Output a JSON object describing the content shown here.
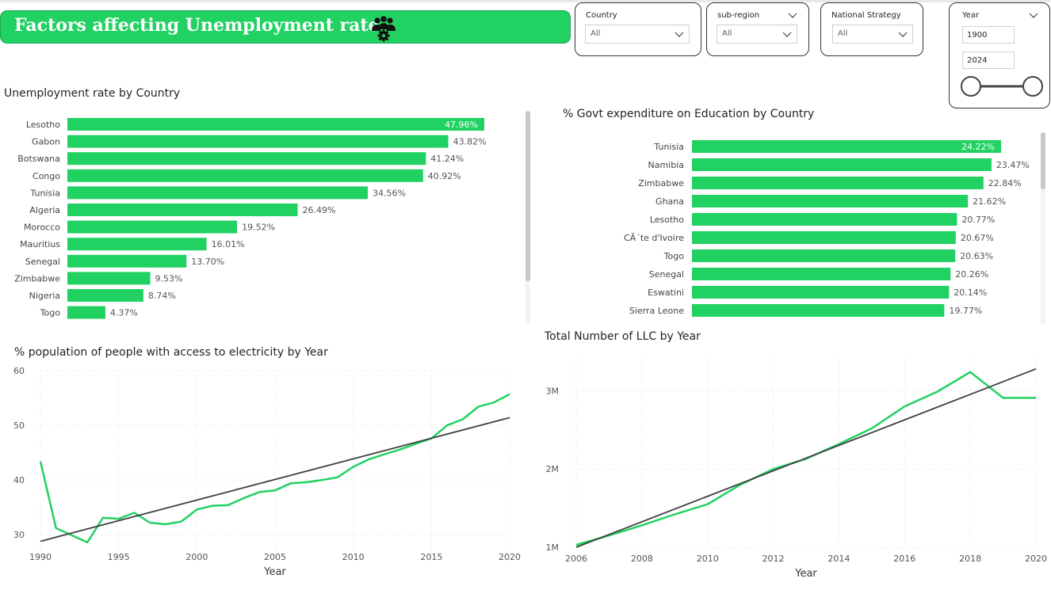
{
  "dashboard": {
    "title": "Factors affecting Unemployment rate",
    "title_icon": "team-gear-icon",
    "accent": "#21d162",
    "trend_color": "#404040"
  },
  "filters": {
    "country": {
      "label": "Country",
      "value": "All"
    },
    "sub_region": {
      "label": "sub-region",
      "value": "All"
    },
    "national_strategy": {
      "label": "National Strategy",
      "value": "All"
    },
    "year": {
      "label": "Year",
      "start": "1900",
      "end": "2024"
    }
  },
  "chart_data": [
    {
      "id": "unemployment",
      "type": "bar",
      "orientation": "horizontal",
      "title": "Unemployment rate by Country",
      "categories": [
        "Lesotho",
        "Gabon",
        "Botswana",
        "Congo",
        "Tunisia",
        "Algeria",
        "Morocco",
        "Mauritius",
        "Senegal",
        "Zimbabwe",
        "Nigeria",
        "Togo"
      ],
      "values": [
        47.96,
        43.82,
        41.24,
        40.92,
        34.56,
        26.49,
        19.52,
        16.01,
        13.7,
        9.53,
        8.74,
        4.37
      ],
      "labels": [
        "47.96%",
        "43.82%",
        "41.24%",
        "40.92%",
        "34.56%",
        "26.49%",
        "19.52%",
        "16.01%",
        "13.70%",
        "9.53%",
        "8.74%",
        "4.37%"
      ]
    },
    {
      "id": "education",
      "type": "bar",
      "orientation": "horizontal",
      "title": "% Govt expenditure on Education by Country",
      "categories": [
        "Tunisia",
        "Namibia",
        "Zimbabwe",
        "Ghana",
        "Lesotho",
        "CÃ´te d'Ivoire",
        "Togo",
        "Senegal",
        "Eswatini",
        "Sierra Leone"
      ],
      "values": [
        24.22,
        23.47,
        22.84,
        21.62,
        20.77,
        20.67,
        20.63,
        20.26,
        20.14,
        19.77
      ],
      "labels": [
        "24.22%",
        "23.47%",
        "22.84%",
        "21.62%",
        "20.77%",
        "20.67%",
        "20.63%",
        "20.26%",
        "20.14%",
        "19.77%"
      ]
    },
    {
      "id": "electricity",
      "type": "line",
      "title": "% population of people with access to electricity by Year",
      "xlabel": "Year",
      "ylabel": "",
      "x": [
        1990,
        1991,
        1992,
        1993,
        1994,
        1995,
        1996,
        1997,
        1998,
        1999,
        2000,
        2001,
        2002,
        2003,
        2004,
        2005,
        2006,
        2007,
        2008,
        2009,
        2010,
        2011,
        2012,
        2013,
        2014,
        2015,
        2016,
        2017,
        2018,
        2019,
        2020
      ],
      "y": [
        43.4,
        31.2,
        29.9,
        28.6,
        33.1,
        32.9,
        34.0,
        32.2,
        31.9,
        32.4,
        34.6,
        35.3,
        35.4,
        36.7,
        37.8,
        38.1,
        39.4,
        39.6,
        40.0,
        40.5,
        42.4,
        43.8,
        44.7,
        45.6,
        46.6,
        47.6,
        50.0,
        51.1,
        53.4,
        54.2,
        55.7
      ],
      "trend": {
        "x": [
          1990,
          2020
        ],
        "y": [
          28.8,
          51.4
        ]
      },
      "xticks": [
        1990,
        1995,
        2000,
        2005,
        2010,
        2015,
        2020
      ],
      "yticks": [
        30,
        40,
        50,
        60
      ],
      "ytick_labels": [
        "30",
        "40",
        "50",
        "60"
      ],
      "xlim": [
        1990,
        2020
      ],
      "ylim": [
        25.1,
        60
      ],
      "grid": true
    },
    {
      "id": "llc",
      "type": "line",
      "title": "Total Number of LLC by Year",
      "xlabel": "Year",
      "ylabel": "",
      "x": [
        2006,
        2007,
        2008,
        2009,
        2010,
        2011,
        2012,
        2013,
        2014,
        2015,
        2016,
        2017,
        2018,
        2019,
        2020
      ],
      "y": [
        1030000,
        1150000,
        1280000,
        1420000,
        1550000,
        1800000,
        2000000,
        2130000,
        2320000,
        2520000,
        2800000,
        2990000,
        3240000,
        2910000,
        2910000
      ],
      "trend": {
        "x": [
          2006,
          2020
        ],
        "y": [
          1000000,
          3280000
        ]
      },
      "xticks": [
        2006,
        2008,
        2010,
        2012,
        2014,
        2016,
        2018,
        2020
      ],
      "yticks": [
        1000000,
        2000000,
        3000000
      ],
      "ytick_labels": [
        "1M",
        "2M",
        "3M"
      ],
      "xlim": [
        2006,
        2020
      ],
      "ylim": [
        1000000,
        3420000
      ],
      "grid": true
    }
  ]
}
